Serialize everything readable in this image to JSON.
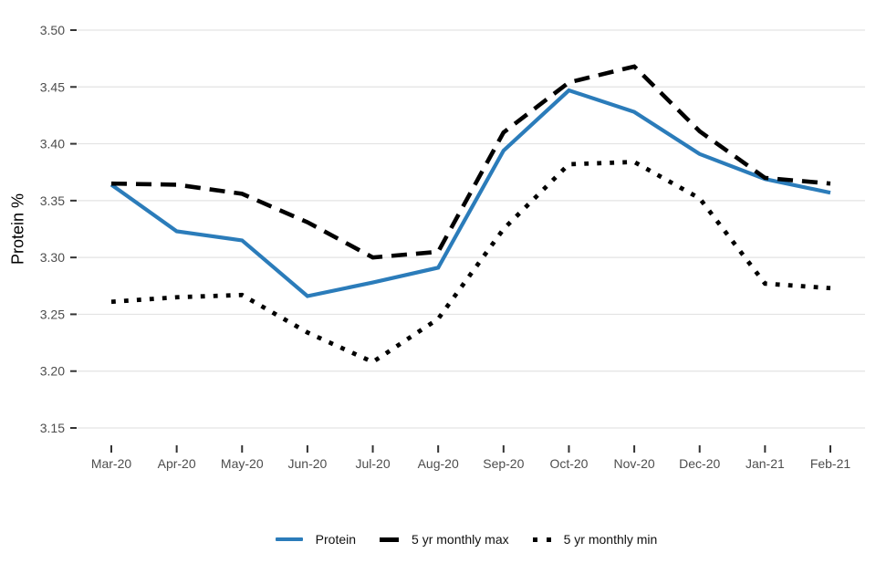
{
  "chart_data": {
    "type": "line",
    "title": "",
    "xlabel": "",
    "ylabel": "Protein %",
    "ylim": [
      3.15,
      3.5
    ],
    "ytick_labels": [
      "3.50",
      "3.45",
      "3.40",
      "3.35",
      "3.30",
      "3.25",
      "3.20",
      "3.15"
    ],
    "grid": "horizontal",
    "legend_position": "bottom",
    "categories": [
      "Mar-20",
      "Apr-20",
      "May-20",
      "Jun-20",
      "Jul-20",
      "Aug-20",
      "Sep-20",
      "Oct-20",
      "Nov-20",
      "Dec-20",
      "Jan-21",
      "Feb-21"
    ],
    "series": [
      {
        "name": "Protein",
        "style": "solid",
        "color": "#2b7cba",
        "values": [
          3.364,
          3.323,
          3.315,
          3.266,
          3.278,
          3.291,
          3.394,
          3.447,
          3.428,
          3.391,
          3.369,
          3.357
        ]
      },
      {
        "name": "5 yr monthly max",
        "style": "dashed",
        "color": "#000000",
        "values": [
          3.365,
          3.364,
          3.356,
          3.331,
          3.3,
          3.305,
          3.41,
          3.454,
          3.468,
          3.411,
          3.37,
          3.365
        ]
      },
      {
        "name": "5 yr monthly min",
        "style": "dotted",
        "color": "#000000",
        "values": [
          3.261,
          3.265,
          3.267,
          3.234,
          3.208,
          3.246,
          3.325,
          3.382,
          3.384,
          3.352,
          3.277,
          3.273
        ]
      }
    ],
    "grid_color": "#e3e3e3",
    "tick_color": "#333333",
    "axis_text_color": "#4d4d4d"
  }
}
